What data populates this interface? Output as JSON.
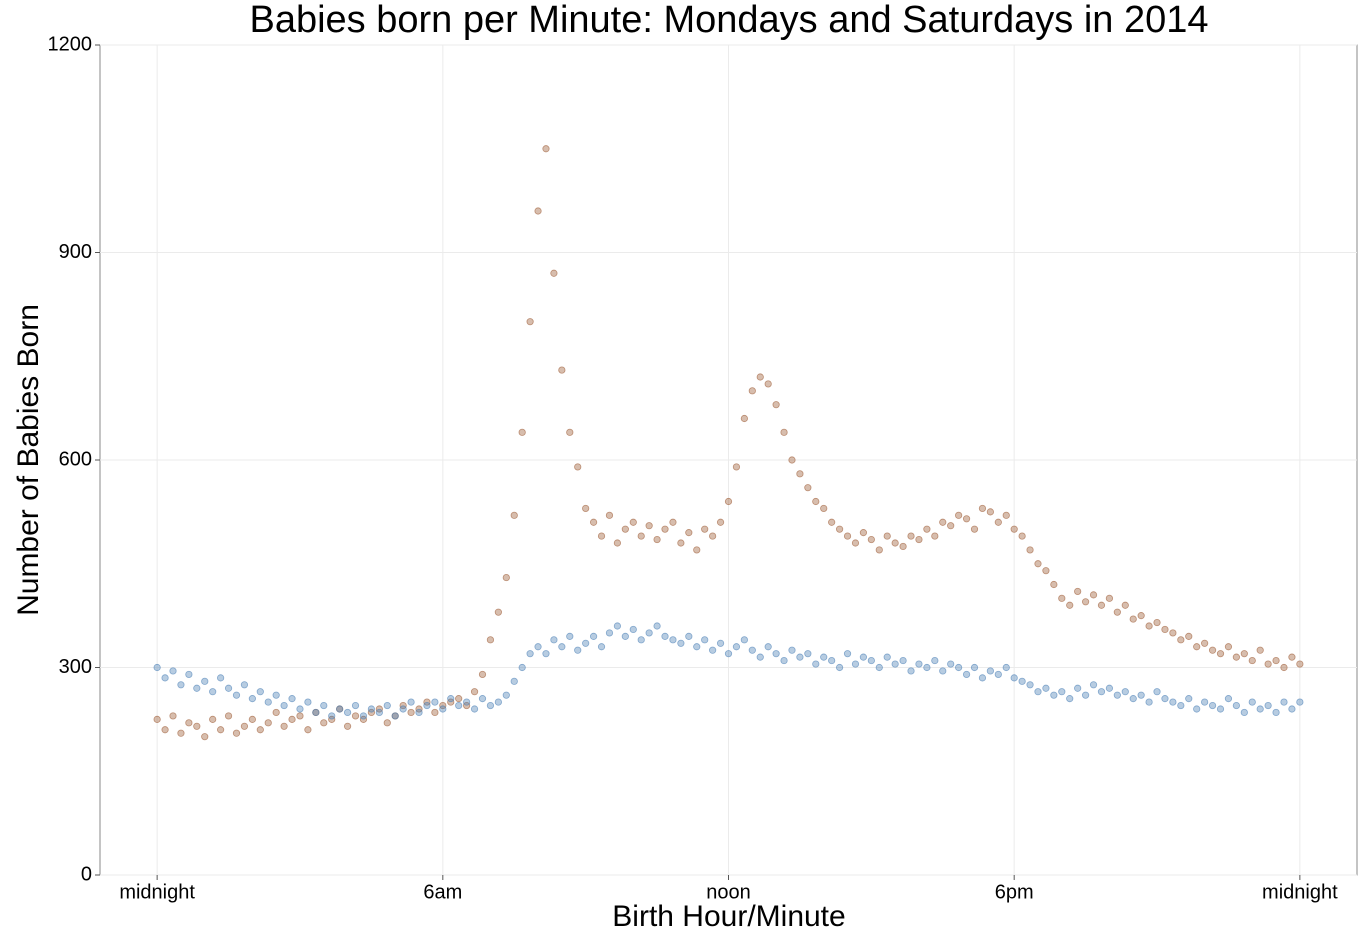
{
  "chart_data": {
    "type": "scatter",
    "title": "Babies born per Minute: Mondays and Saturdays in 2014",
    "x_label": "Birth Hour/Minute",
    "y_label": "Number of Babies Born",
    "x": [
      0,
      10,
      20,
      30,
      40,
      50,
      60,
      70,
      80,
      90,
      100,
      110,
      120,
      130,
      140,
      150,
      160,
      170,
      180,
      190,
      200,
      210,
      220,
      230,
      240,
      250,
      260,
      270,
      280,
      290,
      300,
      310,
      320,
      330,
      340,
      350,
      360,
      370,
      380,
      390,
      400,
      410,
      420,
      430,
      440,
      450,
      460,
      470,
      480,
      490,
      500,
      510,
      520,
      530,
      540,
      550,
      560,
      570,
      580,
      590,
      600,
      610,
      620,
      630,
      640,
      650,
      660,
      670,
      680,
      690,
      700,
      710,
      720,
      730,
      740,
      750,
      760,
      770,
      780,
      790,
      800,
      810,
      820,
      830,
      840,
      850,
      860,
      870,
      880,
      890,
      900,
      910,
      920,
      930,
      940,
      950,
      960,
      970,
      980,
      990,
      1000,
      1010,
      1020,
      1030,
      1040,
      1050,
      1060,
      1070,
      1080,
      1090,
      1100,
      1110,
      1120,
      1130,
      1140,
      1150,
      1160,
      1170,
      1180,
      1190,
      1200,
      1210,
      1220,
      1230,
      1240,
      1250,
      1260,
      1270,
      1280,
      1290,
      1300,
      1310,
      1320,
      1330,
      1340,
      1350,
      1360,
      1370,
      1380,
      1390,
      1400,
      1410,
      1420,
      1430,
      1440
    ],
    "series": [
      {
        "color": "#9c5a33",
        "values": [
          225,
          210,
          230,
          205,
          220,
          215,
          200,
          225,
          210,
          230,
          205,
          215,
          225,
          210,
          220,
          235,
          215,
          225,
          230,
          210,
          235,
          220,
          225,
          240,
          215,
          230,
          225,
          235,
          240,
          220,
          230,
          245,
          235,
          240,
          250,
          235,
          245,
          250,
          255,
          245,
          265,
          290,
          340,
          380,
          430,
          520,
          640,
          800,
          960,
          1050,
          870,
          730,
          640,
          590,
          530,
          510,
          490,
          520,
          480,
          500,
          510,
          490,
          505,
          485,
          500,
          510,
          480,
          495,
          470,
          500,
          490,
          510,
          540,
          590,
          660,
          700,
          720,
          710,
          680,
          640,
          600,
          580,
          560,
          540,
          530,
          510,
          500,
          490,
          480,
          495,
          485,
          470,
          490,
          480,
          475,
          490,
          485,
          500,
          490,
          510,
          505,
          520,
          515,
          500,
          530,
          525,
          510,
          520,
          500,
          490,
          470,
          450,
          440,
          420,
          400,
          390,
          410,
          395,
          405,
          390,
          400,
          380,
          390,
          370,
          375,
          360,
          365,
          355,
          350,
          340,
          345,
          330,
          335,
          325,
          320,
          330,
          315,
          320,
          310,
          325,
          305,
          310,
          300,
          315,
          305
        ]
      },
      {
        "color": "#4a7fb5",
        "values": [
          300,
          285,
          295,
          275,
          290,
          270,
          280,
          265,
          285,
          270,
          260,
          275,
          255,
          265,
          250,
          260,
          245,
          255,
          240,
          250,
          235,
          245,
          230,
          240,
          235,
          245,
          230,
          240,
          235,
          245,
          230,
          240,
          250,
          235,
          245,
          250,
          240,
          255,
          245,
          250,
          240,
          255,
          245,
          250,
          260,
          280,
          300,
          320,
          330,
          320,
          340,
          330,
          345,
          325,
          335,
          345,
          330,
          350,
          360,
          345,
          355,
          340,
          350,
          360,
          345,
          340,
          335,
          345,
          330,
          340,
          325,
          335,
          320,
          330,
          340,
          325,
          315,
          330,
          320,
          310,
          325,
          315,
          320,
          305,
          315,
          310,
          300,
          320,
          305,
          315,
          310,
          300,
          315,
          305,
          310,
          295,
          305,
          300,
          310,
          295,
          305,
          300,
          290,
          300,
          285,
          295,
          290,
          300,
          285,
          280,
          275,
          265,
          270,
          260,
          265,
          255,
          270,
          260,
          275,
          265,
          270,
          260,
          265,
          255,
          260,
          250,
          265,
          255,
          250,
          245,
          255,
          240,
          250,
          245,
          240,
          255,
          245,
          235,
          250,
          240,
          245,
          235,
          250,
          240,
          250
        ]
      }
    ],
    "xlim": [
      -72,
      1512
    ],
    "xticks": [
      {
        "value": 0,
        "label": "midnight"
      },
      {
        "value": 360,
        "label": "6am"
      },
      {
        "value": 720,
        "label": "noon"
      },
      {
        "value": 1080,
        "label": "6pm"
      },
      {
        "value": 1440,
        "label": "midnight"
      }
    ],
    "ylim": [
      0,
      1200
    ],
    "yticks": [
      0,
      300,
      600,
      900,
      1200
    ],
    "grid": true
  }
}
